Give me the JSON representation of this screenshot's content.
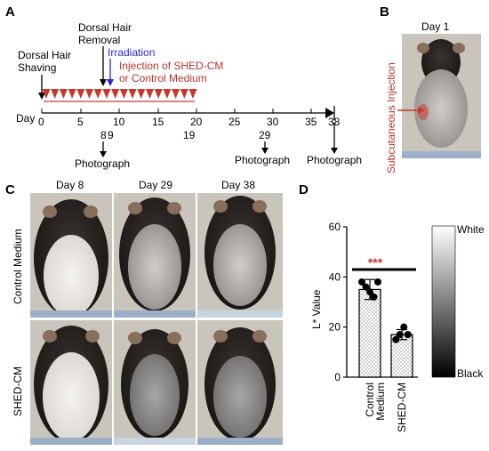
{
  "panels": {
    "a": {
      "letter": "A",
      "shaving_label": [
        "Dorsal Hair",
        "Shaving"
      ],
      "removal_label": [
        "Dorsal Hair",
        "Removal"
      ],
      "irradiation_label": "Irradiation",
      "injection_label": [
        "Injection of SHED-CM",
        "or Control Medium"
      ],
      "day_label": "Day",
      "ticks": [
        "0",
        "5",
        "10",
        "15",
        "20",
        "25",
        "30",
        "35",
        "38"
      ],
      "sub_marks": [
        "8",
        "9",
        "19",
        "29"
      ],
      "photograph_label": "Photograph",
      "injection_count": 18,
      "colors": {
        "injection": "#c8372d",
        "irradiation": "#2727d8"
      }
    },
    "b": {
      "letter": "B",
      "day_label": "Day 1",
      "injection_label": "Subcutaneous Injection"
    },
    "c": {
      "letter": "C",
      "columns": [
        "Day 8",
        "Day 29",
        "Day 38"
      ],
      "rows": [
        "Control Medium",
        "SHED-CM"
      ]
    },
    "d": {
      "letter": "D",
      "ylabel": "L* Value",
      "significance": "***",
      "gradient_top": "White",
      "gradient_bottom": "Black"
    }
  },
  "chart_data": {
    "type": "bar",
    "categories": [
      "Control Medium",
      "SHED-CM"
    ],
    "category_lines": [
      [
        "Control",
        "Medium"
      ],
      [
        "SHED-CM"
      ]
    ],
    "values": [
      35,
      17
    ],
    "errors": [
      4,
      2
    ],
    "points": [
      [
        38,
        36,
        34,
        32,
        38
      ],
      [
        15,
        17,
        20,
        17
      ]
    ],
    "ylim": [
      0,
      60
    ],
    "yticks": [
      "0",
      "20",
      "40",
      "60"
    ],
    "ylabel": "L* Value"
  }
}
